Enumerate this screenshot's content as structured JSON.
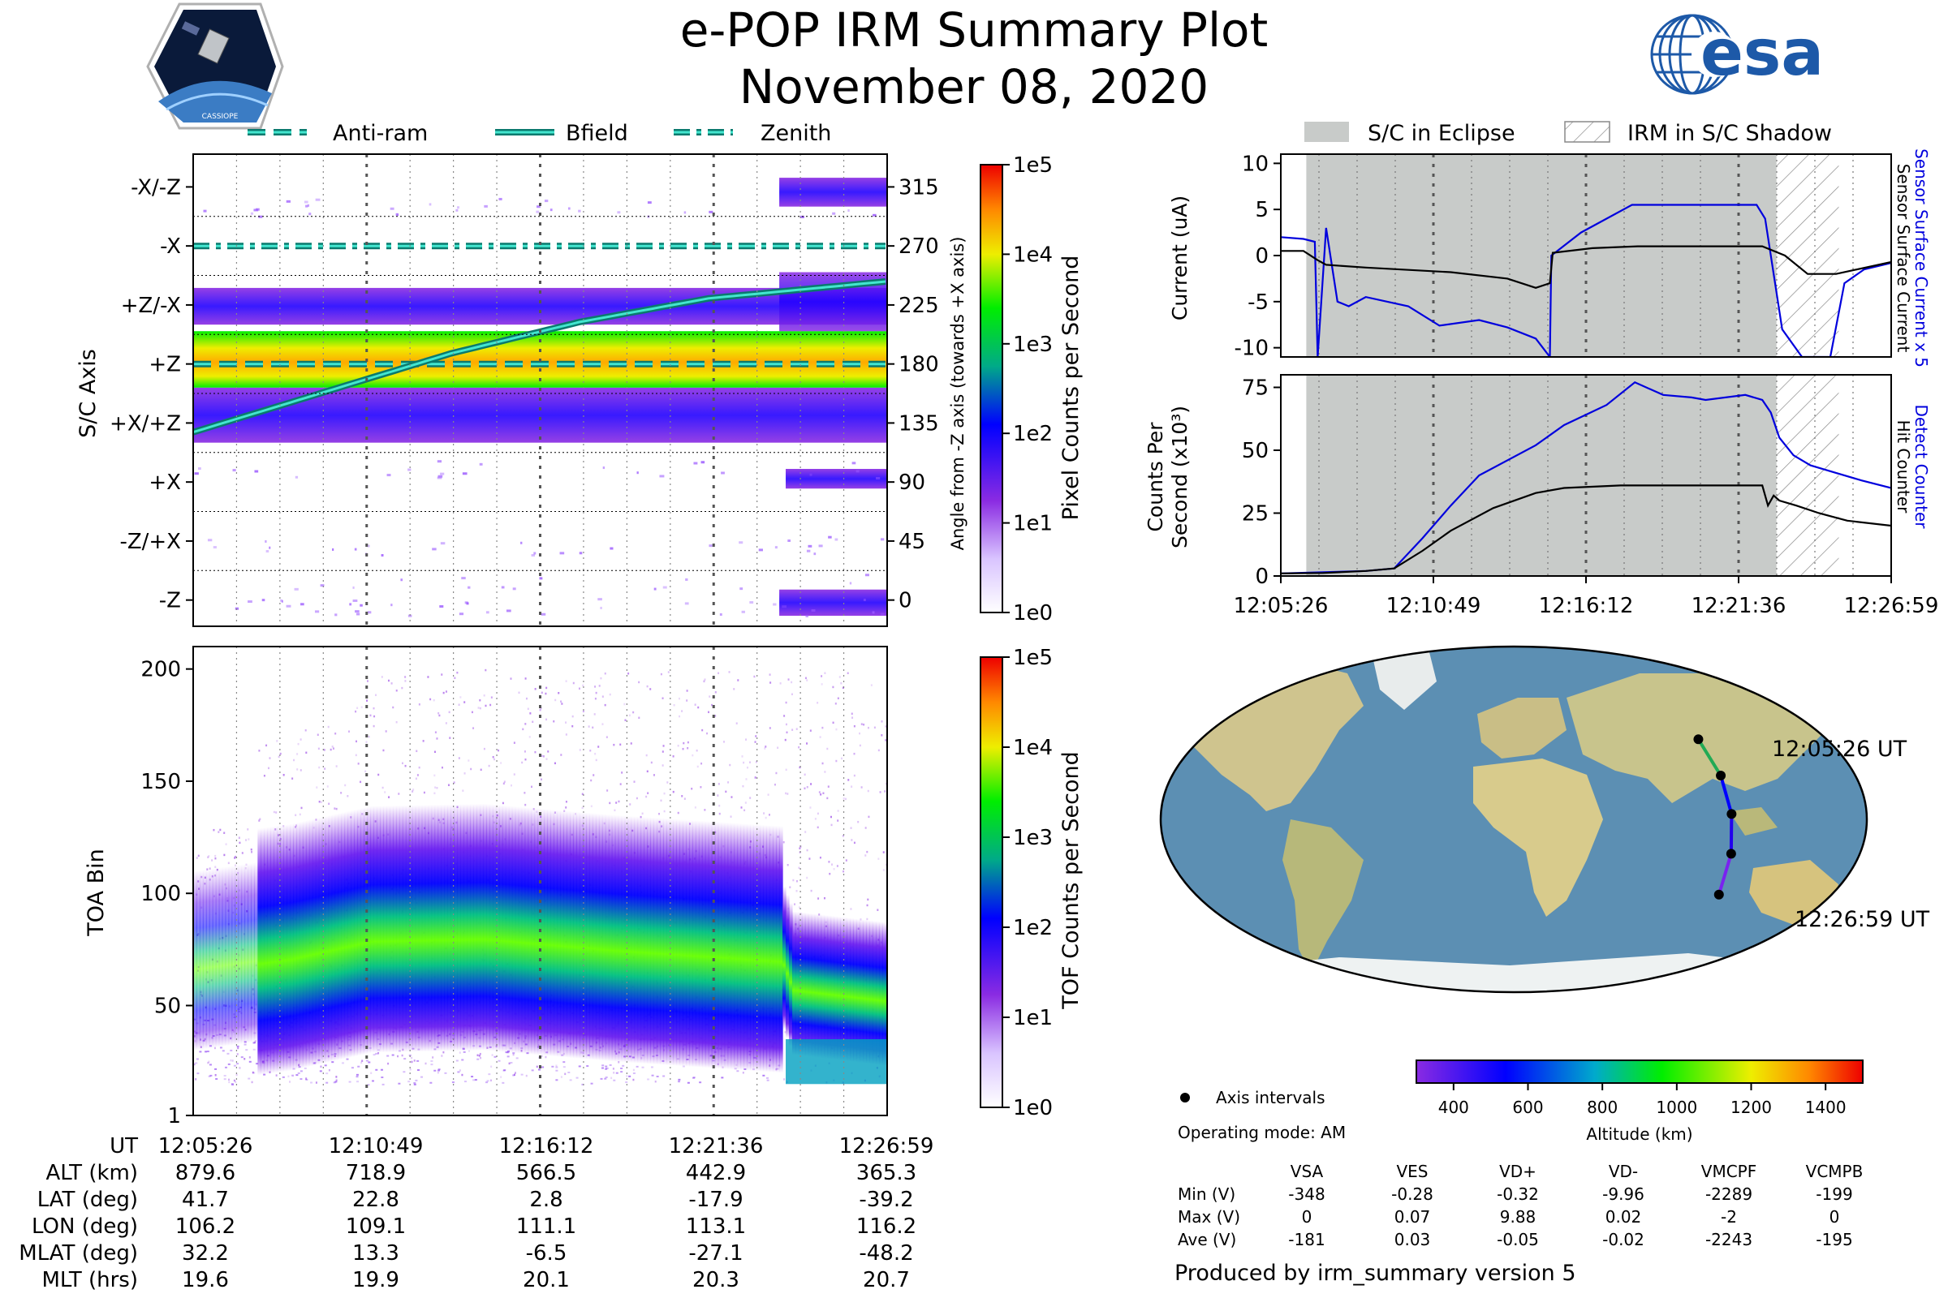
{
  "header": {
    "title": "e-POP IRM Summary Plot",
    "date": "November 08, 2020",
    "mission_logo_text": "CASSIOPE",
    "agency_logo_text": "esa"
  },
  "colors": {
    "eclipse": "#c8cbc9",
    "ocean": "#5c8fb3",
    "land": "#cfc48e",
    "current_primary": "#0000dd",
    "trace_secondary": "#000000",
    "guide_line": "#0a7a6e",
    "guide_core": "#43e6cf"
  },
  "left_top_legend": [
    {
      "label": "Anti-ram",
      "style": "dashed"
    },
    {
      "label": "Bfield",
      "style": "solid"
    },
    {
      "label": "Zenith",
      "style": "dashdot"
    }
  ],
  "right_top_legend": [
    {
      "label": "S/C in Eclipse",
      "style": "solid"
    },
    {
      "label": "IRM in S/C Shadow",
      "style": "hatched"
    }
  ],
  "panel_axis": {
    "ylabel": "S/C Axis",
    "ylabel_right": "Angle from -Z axis (towards +X axis)",
    "left_ticks": [
      "-X/-Z",
      "-X",
      "+Z/-X",
      "+Z",
      "+X/+Z",
      "+X",
      "-Z/+X",
      "-Z"
    ],
    "right_ticks": [
      "315",
      "270",
      "225",
      "180",
      "135",
      "90",
      "45",
      "0"
    ],
    "colorbar_label": "Pixel Counts per Second",
    "colorbar_ticks": [
      "1e5",
      "1e4",
      "1e3",
      "1e2",
      "1e1",
      "1e0"
    ]
  },
  "panel_toa": {
    "ylabel": "TOA Bin",
    "ticks": [
      "200",
      "150",
      "100",
      "50",
      "1"
    ],
    "colorbar_label": "TOF Counts per Second",
    "colorbar_ticks": [
      "1e5",
      "1e4",
      "1e3",
      "1e2",
      "1e1",
      "1e0"
    ]
  },
  "ephemeris": {
    "rows": [
      {
        "label": "UT",
        "values": [
          "12:05:26",
          "12:10:49",
          "12:16:12",
          "12:21:36",
          "12:26:59"
        ]
      },
      {
        "label": "ALT (km)",
        "values": [
          "879.6",
          "718.9",
          "566.5",
          "442.9",
          "365.3"
        ]
      },
      {
        "label": "LAT (deg)",
        "values": [
          "41.7",
          "22.8",
          "2.8",
          "-17.9",
          "-39.2"
        ]
      },
      {
        "label": "LON (deg)",
        "values": [
          "106.2",
          "109.1",
          "111.1",
          "113.1",
          "116.2"
        ]
      },
      {
        "label": "MLAT (deg)",
        "values": [
          "32.2",
          "13.3",
          "-6.5",
          "-27.1",
          "-48.2"
        ]
      },
      {
        "label": "MLT (hrs)",
        "values": [
          "19.6",
          "19.9",
          "20.1",
          "20.3",
          "20.7"
        ]
      }
    ]
  },
  "current_panel": {
    "ylabel": "Current (uA)",
    "right_label_blue": "Sensor Surface Current x 5",
    "right_label_black": "Sensor Surface Current",
    "yticks": [
      "10",
      "5",
      "0",
      "-5",
      "-10"
    ]
  },
  "counts_panel": {
    "ylabel_line1": "Counts Per",
    "ylabel_line2": "Second (x10³)",
    "right_label_blue": "Detect Counter",
    "right_label_black": "Hit Counter",
    "yticks": [
      "75",
      "50",
      "25",
      "0"
    ],
    "xticks": [
      "12:05:26",
      "12:10:49",
      "12:16:12",
      "12:21:36",
      "12:26:59"
    ]
  },
  "chart_data": [
    {
      "type": "heatmap",
      "id": "sc-axis-heatmap",
      "ylabel": "S/C Axis",
      "ylabel_right": "Angle from -Z axis (towards +X axis)",
      "ylim": [
        -20,
        340
      ],
      "ytick_values": [
        315,
        270,
        225,
        180,
        135,
        90,
        45,
        0
      ],
      "colorbar": {
        "label": "Pixel Counts per Second",
        "scale": "log",
        "range": [
          1,
          100000
        ]
      },
      "bands": [
        {
          "angle_from": 120,
          "angle_to": 162,
          "level": "low"
        },
        {
          "angle_from": 162,
          "angle_to": 205,
          "level": "high"
        },
        {
          "angle_from": 210,
          "angle_to": 238,
          "level": "low"
        },
        {
          "angle_from": 300,
          "angle_to": 322,
          "level": "low",
          "start_min": 18.2
        },
        {
          "angle_from": 85,
          "angle_to": 100,
          "level": "low",
          "start_min": 18.4
        },
        {
          "angle_from": -12,
          "angle_to": 8,
          "level": "low",
          "start_min": 18.2
        }
      ],
      "series": [
        {
          "name": "Anti-ram",
          "x_min": [
            0,
            21.55
          ],
          "y_deg": [
            180,
            180
          ]
        },
        {
          "name": "Zenith",
          "x_min": [
            0,
            21.55
          ],
          "y_deg": [
            270,
            270
          ]
        },
        {
          "name": "Bfield",
          "x_min": [
            0,
            4,
            8,
            12,
            16,
            21.55
          ],
          "y_deg": [
            128,
            158,
            188,
            212,
            230,
            243
          ]
        }
      ]
    },
    {
      "type": "heatmap",
      "id": "toa-heatmap",
      "ylabel": "TOA Bin",
      "ylim": [
        1,
        210
      ],
      "ytick_values": [
        200,
        150,
        100,
        50,
        1
      ],
      "colorbar": {
        "label": "TOF Counts per Second",
        "scale": "log",
        "range": [
          1,
          100000
        ]
      },
      "core_band": {
        "x_min": [
          0,
          3,
          5.5,
          9,
          13,
          18.2,
          18.6,
          21.55
        ],
        "center_bin": [
          70,
          76,
          84,
          85,
          80,
          75,
          60,
          55
        ]
      },
      "x_range_min": [
        0,
        21.55
      ],
      "xtick_labels": [
        "12:05:26",
        "12:10:49",
        "12:16:12",
        "12:21:36",
        "12:26:59"
      ]
    },
    {
      "type": "line",
      "id": "current-lines",
      "ylabel": "Current (uA)",
      "ylim": [
        -11,
        11
      ],
      "eclipse_min": [
        0.9,
        17.5
      ],
      "shadow_min": [
        17.5,
        19.7
      ],
      "series": [
        {
          "name": "Sensor Surface Current x 5",
          "x_min": [
            0,
            0.8,
            1.2,
            1.3,
            1.6,
            2.0,
            2.4,
            3.0,
            4.5,
            5.6,
            7.0,
            8.0,
            9.0,
            9.5,
            9.55,
            10.6,
            12.4,
            13.8,
            15.4,
            16.8,
            17.1,
            17.7,
            18.4,
            19.0,
            19.4,
            19.9,
            20.6,
            21.55
          ],
          "y": [
            2,
            1.8,
            1.5,
            -11,
            3,
            -5,
            -5.5,
            -4.5,
            -5.5,
            -7.6,
            -7,
            -7.8,
            -9,
            -11,
            0,
            2.5,
            5.5,
            5.5,
            5.5,
            5.5,
            4,
            -8,
            -11,
            -11,
            -11,
            -3,
            -1.5,
            -0.8
          ]
        },
        {
          "name": "Sensor Surface Current",
          "x_min": [
            0,
            0.8,
            1.3,
            1.6,
            3.0,
            6.0,
            8.0,
            9.0,
            9.5,
            9.6,
            11.0,
            12.6,
            14.0,
            15.9,
            17.0,
            17.8,
            18.6,
            19.6,
            21.55
          ],
          "y": [
            0.5,
            0.5,
            -0.5,
            -1,
            -1.3,
            -1.8,
            -2.5,
            -3.5,
            -3,
            0.3,
            0.8,
            1,
            1,
            1,
            1,
            0,
            -2,
            -2,
            -0.7
          ]
        }
      ]
    },
    {
      "type": "line",
      "id": "counts-lines",
      "ylabel": "Counts Per Second (x10³)",
      "ylim": [
        0,
        80
      ],
      "x_range_min": [
        0,
        21.55
      ],
      "eclipse_min": [
        0.9,
        17.5
      ],
      "shadow_min": [
        17.5,
        19.7
      ],
      "series": [
        {
          "name": "Detect Counter",
          "x_min": [
            0,
            1.5,
            3.0,
            4.0,
            5.0,
            6.0,
            7.0,
            9.0,
            10.0,
            11.5,
            12.5,
            13.5,
            14.5,
            15.0,
            16.4,
            17.0,
            17.3,
            17.6,
            18.1,
            18.7,
            19.6,
            20.5,
            21.55
          ],
          "y": [
            1,
            1.5,
            2,
            3,
            15,
            28,
            40,
            52,
            60,
            68,
            77,
            72,
            71,
            70,
            72,
            70,
            65,
            55,
            48,
            44,
            41,
            38,
            35
          ]
        },
        {
          "name": "Hit Counter",
          "x_min": [
            0,
            1.5,
            3.0,
            4.0,
            5.0,
            6.0,
            7.5,
            9.0,
            10.0,
            12.0,
            14.0,
            16.0,
            17.0,
            17.2,
            17.4,
            17.6,
            18.2,
            19.0,
            20.0,
            21.55
          ],
          "y": [
            1,
            1.2,
            2,
            3,
            10,
            18,
            27,
            33,
            35,
            36,
            36,
            36,
            36,
            28,
            32,
            30,
            28,
            25,
            22,
            20
          ]
        }
      ]
    }
  ],
  "map": {
    "start_label": "12:05:26 UT",
    "end_label": "12:26:59 UT",
    "legend_marker_label": "Axis intervals",
    "operating_mode": "Operating mode: AM",
    "altitude_label": "Altitude (km)",
    "altitude_ticks": [
      "400",
      "600",
      "800",
      "1000",
      "1200",
      "1400"
    ]
  },
  "voltage_table": {
    "columns": [
      "VSA",
      "VES",
      "VD+",
      "VD-",
      "VMCPF",
      "VCMPB"
    ],
    "rows": [
      {
        "label": "Min (V)",
        "values": [
          "-348",
          "-0.28",
          "-0.32",
          "-9.96",
          "-2289",
          "-199"
        ]
      },
      {
        "label": "Max (V)",
        "values": [
          "0",
          "0.07",
          "9.88",
          "0.02",
          "-2",
          "0"
        ]
      },
      {
        "label": "Ave (V)",
        "values": [
          "-181",
          "0.03",
          "-0.05",
          "-0.02",
          "-2243",
          "-195"
        ]
      }
    ]
  },
  "footer": {
    "produced_by": "Produced by irm_summary version 5"
  }
}
